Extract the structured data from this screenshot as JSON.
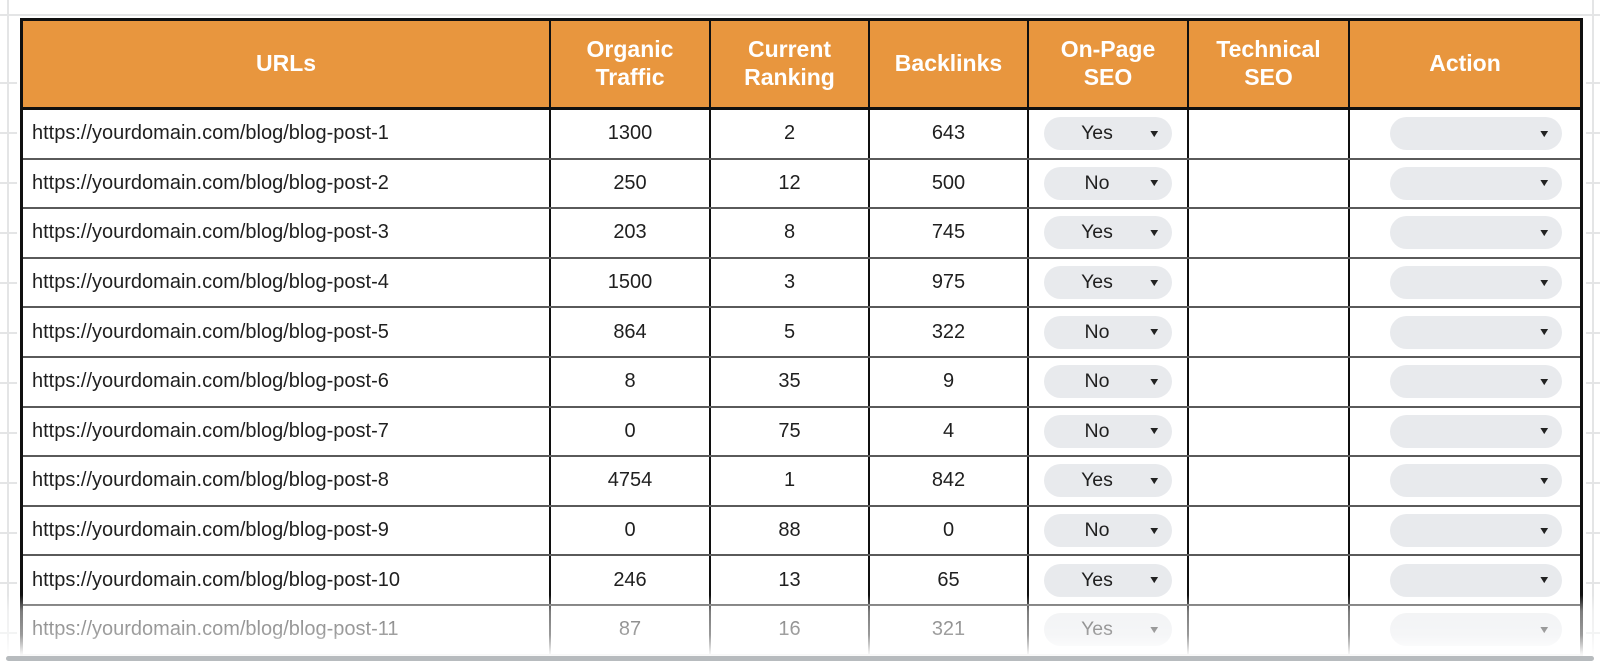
{
  "header": {
    "columns": [
      "URLs",
      "Organic Traffic",
      "Current Ranking",
      "Backlinks",
      "On-Page SEO",
      "Technical SEO",
      "Action"
    ]
  },
  "rows": [
    {
      "url": "https://yourdomain.com/blog/blog-post-1",
      "organic_traffic": "1300",
      "current_ranking": "2",
      "backlinks": "643",
      "on_page_seo": "Yes",
      "technical_seo": "",
      "action": "",
      "faded": false
    },
    {
      "url": "https://yourdomain.com/blog/blog-post-2",
      "organic_traffic": "250",
      "current_ranking": "12",
      "backlinks": "500",
      "on_page_seo": "No",
      "technical_seo": "",
      "action": "",
      "faded": false
    },
    {
      "url": "https://yourdomain.com/blog/blog-post-3",
      "organic_traffic": "203",
      "current_ranking": "8",
      "backlinks": "745",
      "on_page_seo": "Yes",
      "technical_seo": "",
      "action": "",
      "faded": false
    },
    {
      "url": "https://yourdomain.com/blog/blog-post-4",
      "organic_traffic": "1500",
      "current_ranking": "3",
      "backlinks": "975",
      "on_page_seo": "Yes",
      "technical_seo": "",
      "action": "",
      "faded": false
    },
    {
      "url": "https://yourdomain.com/blog/blog-post-5",
      "organic_traffic": "864",
      "current_ranking": "5",
      "backlinks": "322",
      "on_page_seo": "No",
      "technical_seo": "",
      "action": "",
      "faded": false
    },
    {
      "url": "https://yourdomain.com/blog/blog-post-6",
      "organic_traffic": "8",
      "current_ranking": "35",
      "backlinks": "9",
      "on_page_seo": "No",
      "technical_seo": "",
      "action": "",
      "faded": false
    },
    {
      "url": "https://yourdomain.com/blog/blog-post-7",
      "organic_traffic": "0",
      "current_ranking": "75",
      "backlinks": "4",
      "on_page_seo": "No",
      "technical_seo": "",
      "action": "",
      "faded": false
    },
    {
      "url": "https://yourdomain.com/blog/blog-post-8",
      "organic_traffic": "4754",
      "current_ranking": "1",
      "backlinks": "842",
      "on_page_seo": "Yes",
      "technical_seo": "",
      "action": "",
      "faded": false
    },
    {
      "url": "https://yourdomain.com/blog/blog-post-9",
      "organic_traffic": "0",
      "current_ranking": "88",
      "backlinks": "0",
      "on_page_seo": "No",
      "technical_seo": "",
      "action": "",
      "faded": false
    },
    {
      "url": "https://yourdomain.com/blog/blog-post-10",
      "organic_traffic": "246",
      "current_ranking": "13",
      "backlinks": "65",
      "on_page_seo": "Yes",
      "technical_seo": "",
      "action": "",
      "faded": false
    },
    {
      "url": "https://yourdomain.com/blog/blog-post-11",
      "organic_traffic": "87",
      "current_ranking": "16",
      "backlinks": "321",
      "on_page_seo": "Yes",
      "technical_seo": "",
      "action": "",
      "faded": true
    }
  ],
  "icons": {
    "dropdown_arrow": "▼"
  },
  "colors": {
    "header_bg": "#E8963E",
    "header_text": "#FFFFFF",
    "pill_bg": "#E8EAED",
    "table_border": "#101010",
    "row_border": "#5A5A5A",
    "text": "#1F1F1F"
  }
}
